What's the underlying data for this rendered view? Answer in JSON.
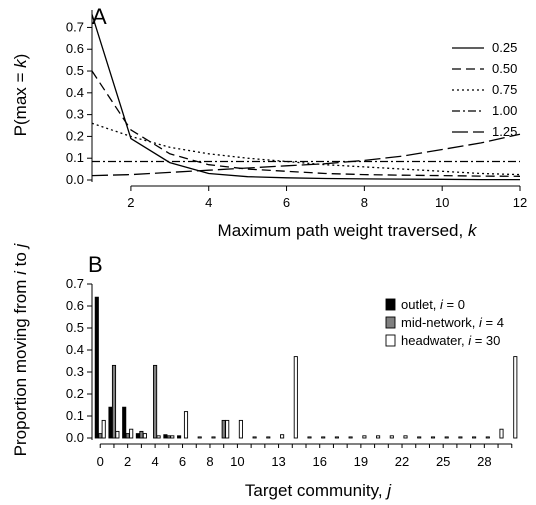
{
  "chart_data": [
    {
      "panel_label": "A",
      "type": "line",
      "xlabel": "Maximum path weight traversed,",
      "xlabel_var": "k",
      "ylabel": "P(max =",
      "ylabel_var": "k",
      "ylabel_close": ")",
      "xlim": [
        1,
        12
      ],
      "ylim": [
        0,
        0.78
      ],
      "xticks": [
        2,
        4,
        6,
        8,
        10,
        12
      ],
      "yticks": [
        0.0,
        0.1,
        0.2,
        0.3,
        0.4,
        0.5,
        0.6,
        0.7
      ],
      "legend_position": "top-right",
      "x": [
        1,
        2,
        3,
        4,
        5,
        6,
        7,
        8,
        9,
        10,
        11,
        12
      ],
      "series": [
        {
          "name": "0.25",
          "dash": "solid",
          "values": [
            0.76,
            0.19,
            0.08,
            0.03,
            0.015,
            0.01,
            0.007,
            0.005,
            0.004,
            0.003,
            0.002,
            0.002
          ]
        },
        {
          "name": "0.50",
          "dash": "long",
          "values": [
            0.5,
            0.23,
            0.12,
            0.07,
            0.05,
            0.04,
            0.03,
            0.025,
            0.022,
            0.02,
            0.018,
            0.017
          ]
        },
        {
          "name": "0.75",
          "dash": "dot",
          "values": [
            0.26,
            0.2,
            0.15,
            0.12,
            0.1,
            0.085,
            0.07,
            0.06,
            0.05,
            0.04,
            0.03,
            0.025
          ]
        },
        {
          "name": "1.00",
          "dash": "dashdot",
          "values": [
            0.085,
            0.085,
            0.085,
            0.085,
            0.085,
            0.085,
            0.085,
            0.085,
            0.085,
            0.085,
            0.085,
            0.085
          ]
        },
        {
          "name": "1.25",
          "dash": "longdash",
          "values": [
            0.02,
            0.025,
            0.035,
            0.045,
            0.055,
            0.065,
            0.075,
            0.09,
            0.11,
            0.14,
            0.17,
            0.21
          ]
        }
      ]
    },
    {
      "panel_label": "B",
      "type": "bar",
      "xlabel": "Target community,",
      "xlabel_var": "j",
      "ylabel": "Proportion moving from",
      "ylabel_var1": "i",
      "ylabel_mid": "to",
      "ylabel_var2": "j",
      "xlim": [
        -0.6,
        30.6
      ],
      "ylim": [
        0,
        0.7
      ],
      "xticks": [
        0,
        2,
        4,
        6,
        8,
        10,
        13,
        16,
        19,
        22,
        25,
        28
      ],
      "yticks": [
        0.0,
        0.1,
        0.2,
        0.3,
        0.4,
        0.5,
        0.6,
        0.7
      ],
      "legend_position": "top-right",
      "categories": [
        0,
        1,
        2,
        3,
        4,
        5,
        6,
        7,
        8,
        9,
        10,
        11,
        12,
        13,
        14,
        15,
        16,
        17,
        18,
        19,
        20,
        21,
        22,
        23,
        24,
        25,
        26,
        27,
        28,
        29,
        30
      ],
      "series": [
        {
          "name": "outlet,",
          "var": "i",
          "eq": "= 0",
          "color": "#000000",
          "values": [
            0.64,
            0.14,
            0.14,
            0.02,
            0.0,
            0.015,
            0.01,
            0.0,
            0.0,
            0.0,
            0.0,
            0.0,
            0.0,
            0.0,
            0.0,
            0.0,
            0.0,
            0.0,
            0.0,
            0.0,
            0.0,
            0.0,
            0.0,
            0.0,
            0.0,
            0.0,
            0.0,
            0.0,
            0.0,
            0.0,
            0.0
          ]
        },
        {
          "name": "mid-network,",
          "var": "i",
          "eq": "= 4",
          "color": "#808080",
          "values": [
            0.02,
            0.33,
            0.02,
            0.03,
            0.33,
            0.01,
            0.0,
            0.0,
            0.0,
            0.08,
            0.0,
            0.0,
            0.0,
            0.0,
            0.0,
            0.0,
            0.0,
            0.0,
            0.0,
            0.0,
            0.0,
            0.0,
            0.0,
            0.0,
            0.0,
            0.0,
            0.0,
            0.0,
            0.0,
            0.0,
            0.0
          ]
        },
        {
          "name": "headwater,",
          "var": "i",
          "eq": "= 30",
          "color": "#ffffff",
          "values": [
            0.08,
            0.03,
            0.04,
            0.02,
            0.01,
            0.01,
            0.12,
            0.005,
            0.005,
            0.08,
            0.08,
            0.005,
            0.005,
            0.015,
            0.37,
            0.005,
            0.005,
            0.005,
            0.005,
            0.01,
            0.01,
            0.01,
            0.01,
            0.005,
            0.005,
            0.005,
            0.005,
            0.005,
            0.005,
            0.04,
            0.37
          ]
        }
      ]
    }
  ]
}
